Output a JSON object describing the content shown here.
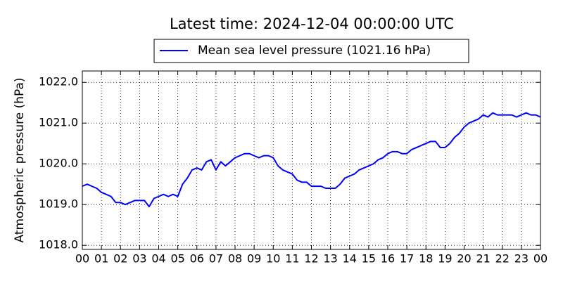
{
  "chart_data": {
    "type": "line",
    "title": "Latest time: 2024-12-04 00:00:00 UTC",
    "ylabel": "Atmospheric pressure (hPa)",
    "legend": "upper center",
    "grid": true,
    "x": [
      0,
      0.25,
      0.5,
      0.75,
      1,
      1.25,
      1.5,
      1.75,
      2,
      2.25,
      2.5,
      2.75,
      3,
      3.25,
      3.5,
      3.75,
      4,
      4.25,
      4.5,
      4.75,
      5,
      5.25,
      5.5,
      5.75,
      6,
      6.25,
      6.5,
      6.75,
      7,
      7.25,
      7.5,
      7.75,
      8,
      8.25,
      8.5,
      8.75,
      9,
      9.25,
      9.5,
      9.75,
      10,
      10.25,
      10.5,
      10.75,
      11,
      11.25,
      11.5,
      11.75,
      12,
      12.25,
      12.5,
      12.75,
      13,
      13.25,
      13.5,
      13.75,
      14,
      14.25,
      14.5,
      14.75,
      15,
      15.25,
      15.5,
      15.75,
      16,
      16.25,
      16.5,
      16.75,
      17,
      17.25,
      17.5,
      17.75,
      18,
      18.25,
      18.5,
      18.75,
      19,
      19.25,
      19.5,
      19.75,
      20,
      20.25,
      20.5,
      20.75,
      21,
      21.25,
      21.5,
      21.75,
      22,
      22.25,
      22.5,
      22.75,
      23,
      23.25,
      23.5,
      23.75,
      24
    ],
    "series": [
      {
        "name": "Mean sea level pressure (1021.16 hPa)",
        "color": "#0000ff",
        "values": [
          1019.45,
          1019.5,
          1019.45,
          1019.4,
          1019.3,
          1019.25,
          1019.2,
          1019.05,
          1019.05,
          1019.0,
          1019.05,
          1019.1,
          1019.1,
          1019.1,
          1018.95,
          1019.15,
          1019.2,
          1019.25,
          1019.2,
          1019.25,
          1019.2,
          1019.5,
          1019.65,
          1019.85,
          1019.9,
          1019.85,
          1020.05,
          1020.1,
          1019.85,
          1020.05,
          1019.95,
          1020.05,
          1020.15,
          1020.2,
          1020.25,
          1020.25,
          1020.2,
          1020.15,
          1020.2,
          1020.2,
          1020.15,
          1019.95,
          1019.85,
          1019.8,
          1019.75,
          1019.6,
          1019.55,
          1019.55,
          1019.45,
          1019.45,
          1019.45,
          1019.4,
          1019.4,
          1019.4,
          1019.5,
          1019.65,
          1019.7,
          1019.75,
          1019.85,
          1019.9,
          1019.95,
          1020.0,
          1020.1,
          1020.15,
          1020.25,
          1020.3,
          1020.3,
          1020.25,
          1020.25,
          1020.35,
          1020.4,
          1020.45,
          1020.5,
          1020.55,
          1020.55,
          1020.4,
          1020.4,
          1020.5,
          1020.65,
          1020.75,
          1020.9,
          1021.0,
          1021.05,
          1021.1,
          1021.2,
          1021.15,
          1021.25,
          1021.2,
          1021.2,
          1021.2,
          1021.2,
          1021.15,
          1021.2,
          1021.25,
          1021.2,
          1021.2,
          1021.15
        ]
      }
    ],
    "xlim": [
      0,
      24
    ],
    "xticks": [
      {
        "value": 0,
        "label": "00"
      },
      {
        "value": 1,
        "label": "01"
      },
      {
        "value": 2,
        "label": "02"
      },
      {
        "value": 3,
        "label": "03"
      },
      {
        "value": 4,
        "label": "04"
      },
      {
        "value": 5,
        "label": "05"
      },
      {
        "value": 6,
        "label": "06"
      },
      {
        "value": 7,
        "label": "07"
      },
      {
        "value": 8,
        "label": "08"
      },
      {
        "value": 9,
        "label": "09"
      },
      {
        "value": 10,
        "label": "10"
      },
      {
        "value": 11,
        "label": "11"
      },
      {
        "value": 12,
        "label": "12"
      },
      {
        "value": 13,
        "label": "13"
      },
      {
        "value": 14,
        "label": "14"
      },
      {
        "value": 15,
        "label": "15"
      },
      {
        "value": 16,
        "label": "16"
      },
      {
        "value": 17,
        "label": "17"
      },
      {
        "value": 18,
        "label": "18"
      },
      {
        "value": 19,
        "label": "19"
      },
      {
        "value": 20,
        "label": "20"
      },
      {
        "value": 21,
        "label": "21"
      },
      {
        "value": 22,
        "label": "22"
      },
      {
        "value": 23,
        "label": "23"
      },
      {
        "value": 24,
        "label": "00"
      }
    ],
    "ylim": [
      1017.9,
      1022.28
    ],
    "yticks": [
      {
        "value": 1018,
        "label": "1018.0"
      },
      {
        "value": 1019,
        "label": "1019.0"
      },
      {
        "value": 1020,
        "label": "1020.0"
      },
      {
        "value": 1021,
        "label": "1021.0"
      },
      {
        "value": 1022,
        "label": "1022.0"
      }
    ]
  }
}
